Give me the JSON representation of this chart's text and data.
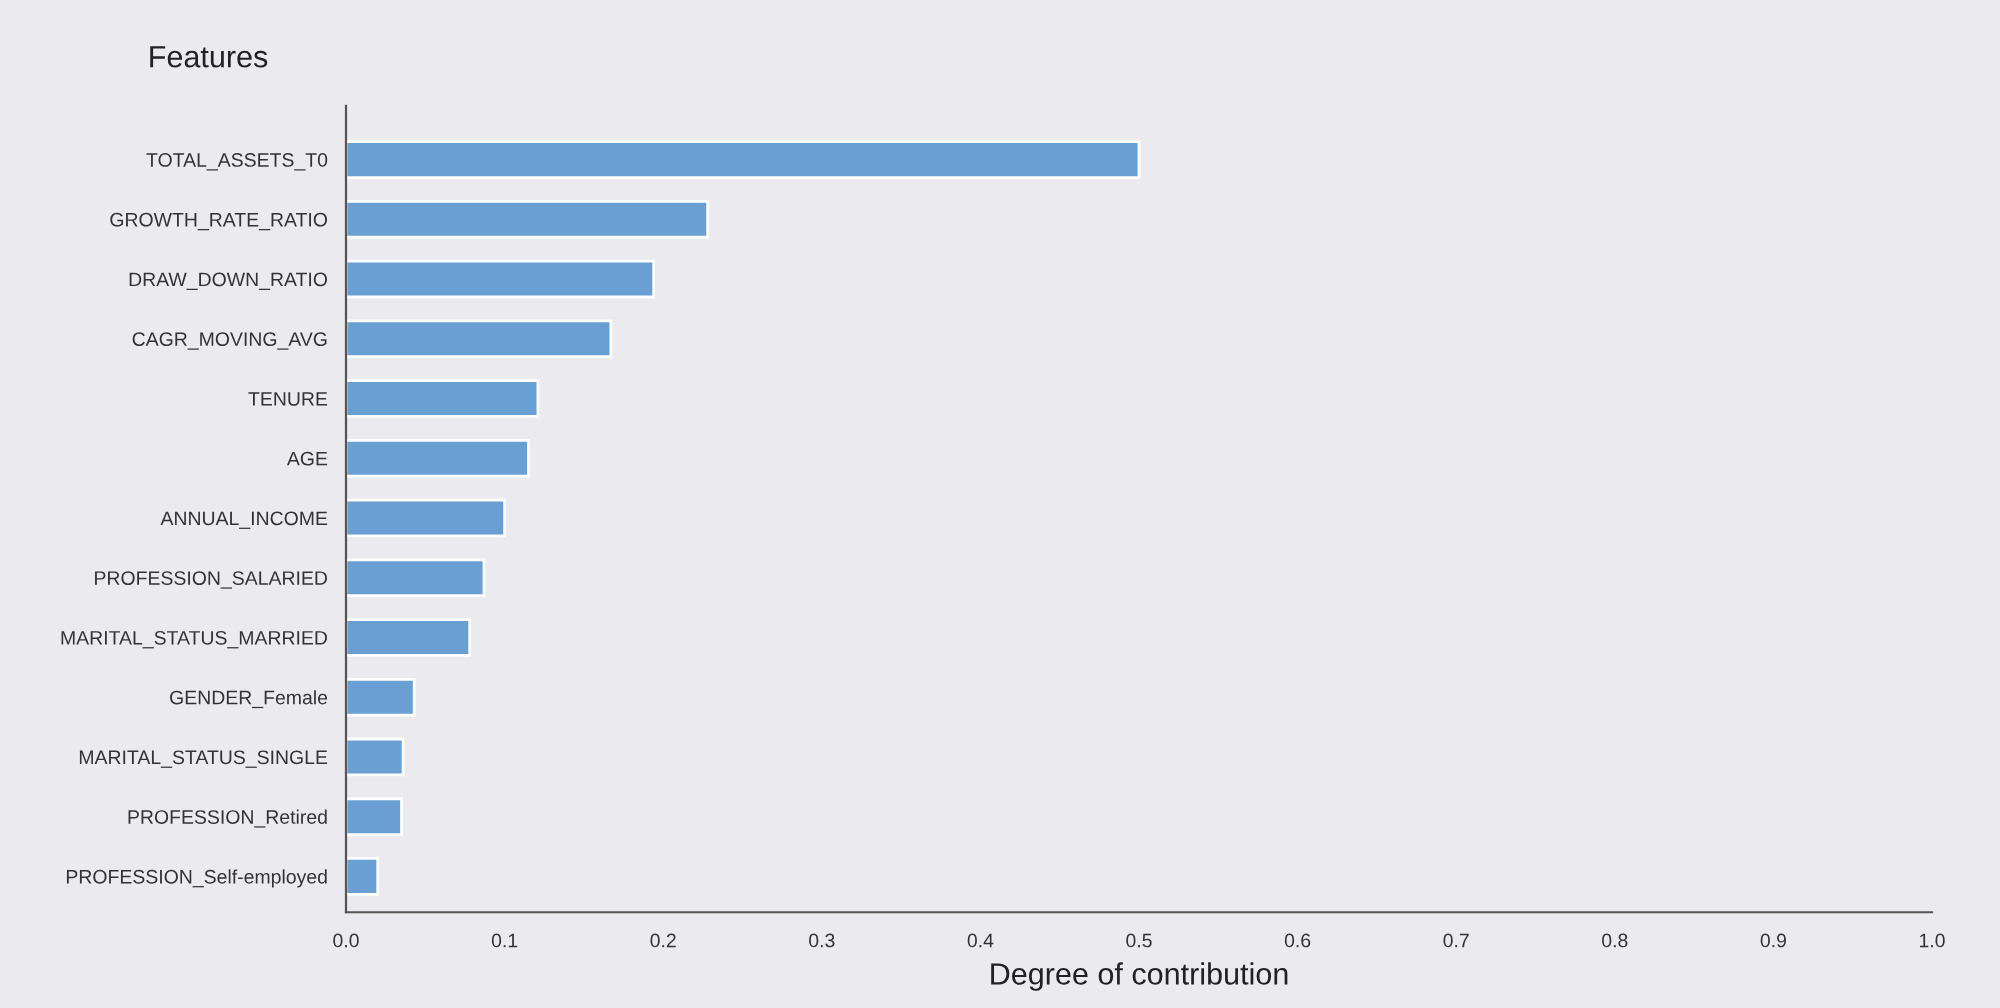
{
  "chart_data": {
    "type": "bar",
    "orientation": "horizontal",
    "xlabel": "Degree of contribution",
    "ylabel": "Features",
    "categories": [
      "TOTAL_ASSETS_T0",
      "GROWTH_RATE_RATIO",
      "DRAW_DOWN_RATIO",
      "CAGR_MOVING_AVG",
      "TENURE",
      "AGE",
      "ANNUAL_INCOME",
      "PROFESSION_SALARIED",
      "MARITAL_STATUS_MARRIED",
      "GENDER_Female",
      "MARITAL_STATUS_SINGLE",
      "PROFESSION_Retired",
      "PROFESSION_Self-employed"
    ],
    "values": [
      0.5,
      0.228,
      0.194,
      0.167,
      0.121,
      0.115,
      0.1,
      0.087,
      0.078,
      0.043,
      0.036,
      0.035,
      0.02
    ],
    "color": "#6a9fd4",
    "xlim": [
      0,
      1.0
    ],
    "xticks": [
      {
        "value": 0,
        "label": "0.0"
      },
      0.1,
      0.2,
      0.3,
      0.4,
      0.5,
      0.6,
      0.7,
      0.8,
      0.9,
      {
        "value": 1,
        "label": "1.0"
      }
    ],
    "grid": false
  }
}
